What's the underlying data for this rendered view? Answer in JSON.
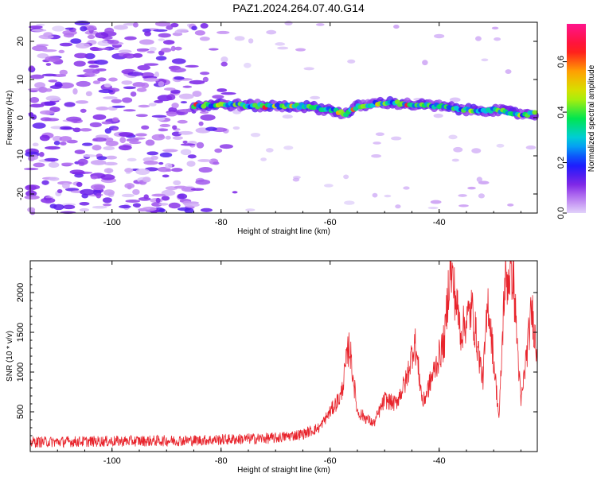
{
  "figure_title": "PAZ1.2024.264.07.40.G14",
  "colors": {
    "snr_line": "#e8242c",
    "axis": "#000000"
  },
  "chart_data": [
    {
      "type": "heatmap",
      "name": "spectrogram",
      "xlabel": "Height of straight line (km)",
      "ylabel": "Frequency (Hz)",
      "xlim": [
        -115,
        -22
      ],
      "ylim": [
        -25,
        25
      ],
      "x_ticks": [
        -100,
        -80,
        -60,
        -40
      ],
      "y_ticks": [
        -20,
        -10,
        0,
        10,
        20
      ],
      "noise_region_x": [
        -115,
        -85
      ],
      "signal_track": [
        {
          "x": -85,
          "y": 3
        },
        {
          "x": -80,
          "y": 3.5
        },
        {
          "x": -75,
          "y": 3.2
        },
        {
          "x": -70,
          "y": 3
        },
        {
          "x": -65,
          "y": 3
        },
        {
          "x": -60,
          "y": 2
        },
        {
          "x": -57,
          "y": 1
        },
        {
          "x": -55,
          "y": 3
        },
        {
          "x": -50,
          "y": 4
        },
        {
          "x": -45,
          "y": 3.5
        },
        {
          "x": -40,
          "y": 3
        },
        {
          "x": -35,
          "y": 2
        },
        {
          "x": -30,
          "y": 2
        },
        {
          "x": -25,
          "y": 1
        },
        {
          "x": -22,
          "y": 1
        }
      ],
      "colorbar": {
        "label": "Normalized spectral amplitude",
        "ticks": [
          "0.0",
          "0.2",
          "0.4",
          "0.6"
        ],
        "range": [
          0,
          0.75
        ]
      }
    },
    {
      "type": "line",
      "name": "snr",
      "xlabel": "Height of straight line (km)",
      "ylabel": "SNR (10 * v/v)",
      "xlim": [
        -115,
        -22
      ],
      "ylim": [
        0,
        2400
      ],
      "x_ticks": [
        -100,
        -80,
        -60,
        -40
      ],
      "y_ticks": [
        500,
        1000,
        1500,
        2000
      ],
      "envelope": [
        [
          -115,
          120
        ],
        [
          -100,
          130
        ],
        [
          -85,
          140
        ],
        [
          -70,
          170
        ],
        [
          -65,
          220
        ],
        [
          -62,
          300
        ],
        [
          -60,
          500
        ],
        [
          -58,
          700
        ],
        [
          -56.5,
          1350
        ],
        [
          -55,
          500
        ],
        [
          -52,
          350
        ],
        [
          -50,
          650
        ],
        [
          -48,
          600
        ],
        [
          -46,
          900
        ],
        [
          -44.5,
          1400
        ],
        [
          -43,
          600
        ],
        [
          -41,
          1000
        ],
        [
          -39,
          1400
        ],
        [
          -38,
          2350
        ],
        [
          -36,
          1500
        ],
        [
          -34,
          1800
        ],
        [
          -32,
          900
        ],
        [
          -31,
          1900
        ],
        [
          -29,
          400
        ],
        [
          -28,
          2100
        ],
        [
          -26.5,
          2300
        ],
        [
          -25,
          600
        ],
        [
          -23,
          1800
        ],
        [
          -22,
          1200
        ]
      ]
    }
  ]
}
